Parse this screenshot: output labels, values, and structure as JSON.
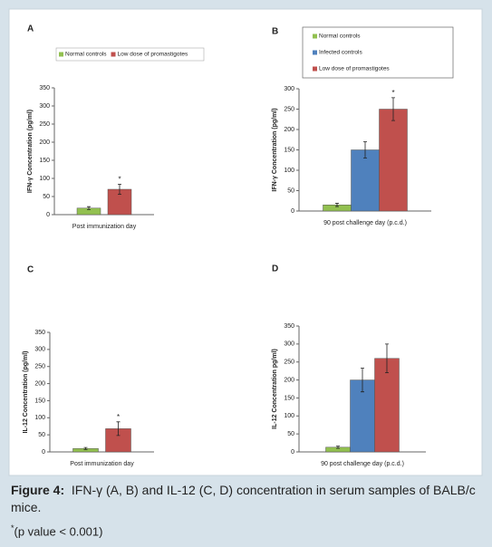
{
  "chart_data": [
    {
      "type": "bar",
      "panel": "A",
      "ylabel": "IFN-γ Concentration (pg/ml)",
      "categories": [
        "Post immunization day"
      ],
      "ylim": [
        0,
        350
      ],
      "yticks": [
        0,
        50,
        100,
        150,
        200,
        250,
        300,
        350
      ],
      "legend": "top",
      "series": [
        {
          "name": "Normal controls",
          "color": "#92c050",
          "values": [
            18
          ],
          "errors": [
            4
          ]
        },
        {
          "name": "Low dose of promastigotes",
          "color": "#c0504d",
          "values": [
            70
          ],
          "errors": [
            14
          ],
          "significance": [
            "*"
          ]
        }
      ]
    },
    {
      "type": "bar",
      "panel": "B",
      "ylabel": "IFN-γ Concentration (pg/ml)",
      "categories": [
        "90 post challenge day (p.c.d.)"
      ],
      "ylim": [
        0,
        300
      ],
      "yticks": [
        0,
        50,
        100,
        150,
        200,
        250,
        300
      ],
      "legend": "top-right",
      "series": [
        {
          "name": "Normal controls",
          "color": "#92c050",
          "values": [
            15
          ],
          "errors": [
            4
          ]
        },
        {
          "name": "Infected controls",
          "color": "#4f81bd",
          "values": [
            150
          ],
          "errors": [
            20
          ]
        },
        {
          "name": "Low dose of promastigotes",
          "color": "#c0504d",
          "values": [
            250
          ],
          "errors": [
            28
          ],
          "significance": [
            "*"
          ]
        }
      ]
    },
    {
      "type": "bar",
      "panel": "C",
      "ylabel": "IL-12 Concentration (pg/ml)",
      "categories": [
        "Post immunization day"
      ],
      "ylim": [
        0,
        350
      ],
      "yticks": [
        0,
        50,
        100,
        150,
        200,
        250,
        300,
        350
      ],
      "series": [
        {
          "color": "#92c050",
          "values": [
            10
          ],
          "errors": [
            3
          ]
        },
        {
          "color": "#c0504d",
          "values": [
            68
          ],
          "errors": [
            20
          ],
          "significance": [
            "*"
          ]
        }
      ]
    },
    {
      "type": "bar",
      "panel": "D",
      "ylabel": "IL-12 Concentration pg/ml)",
      "categories": [
        "90 post challenge day (p.c.d.)"
      ],
      "ylim": [
        0,
        350
      ],
      "yticks": [
        0,
        50,
        100,
        150,
        200,
        250,
        300,
        350
      ],
      "series": [
        {
          "color": "#92c050",
          "values": [
            13
          ],
          "errors": [
            3
          ]
        },
        {
          "color": "#4f81bd",
          "values": [
            200
          ],
          "errors": [
            33
          ]
        },
        {
          "color": "#c0504d",
          "values": [
            260
          ],
          "errors": [
            40
          ]
        }
      ]
    }
  ],
  "caption": {
    "label": "Figure 4:",
    "text": "IFN-γ (A, B) and IL-12 (C, D) concentration in serum samples of BALB/c mice.",
    "note_mark": "*",
    "note": "(p value < 0.001)"
  }
}
